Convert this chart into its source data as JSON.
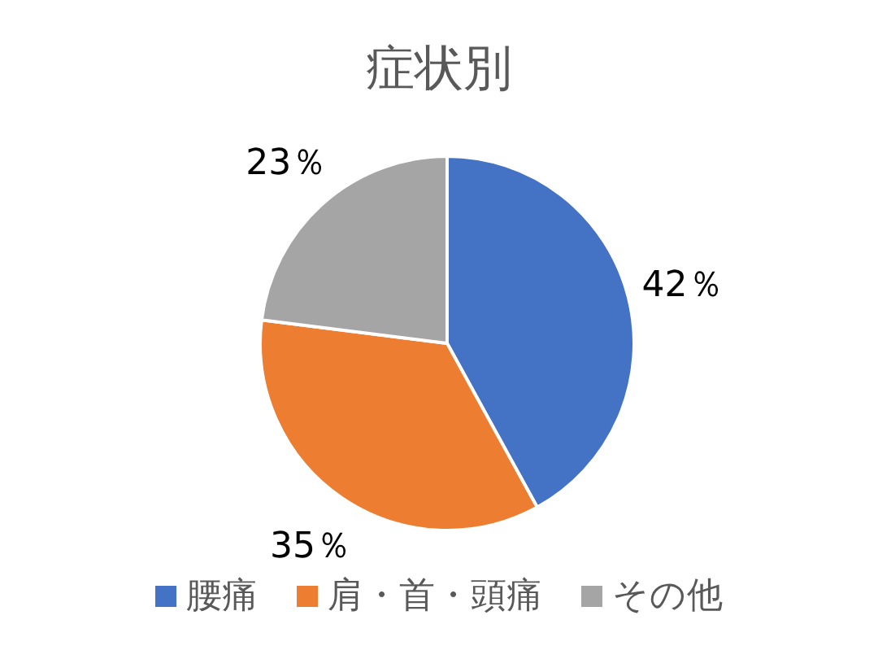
{
  "chart_data": {
    "type": "pie",
    "title": "症状別",
    "categories": [
      "腰痛",
      "肩・首・頭痛",
      "その他"
    ],
    "values": [
      42,
      35,
      23
    ],
    "colors": [
      "#4472c4",
      "#ed7d31",
      "#a5a5a5"
    ],
    "value_labels": [
      "42％",
      "35％",
      "23％"
    ],
    "legend": "bottom"
  }
}
